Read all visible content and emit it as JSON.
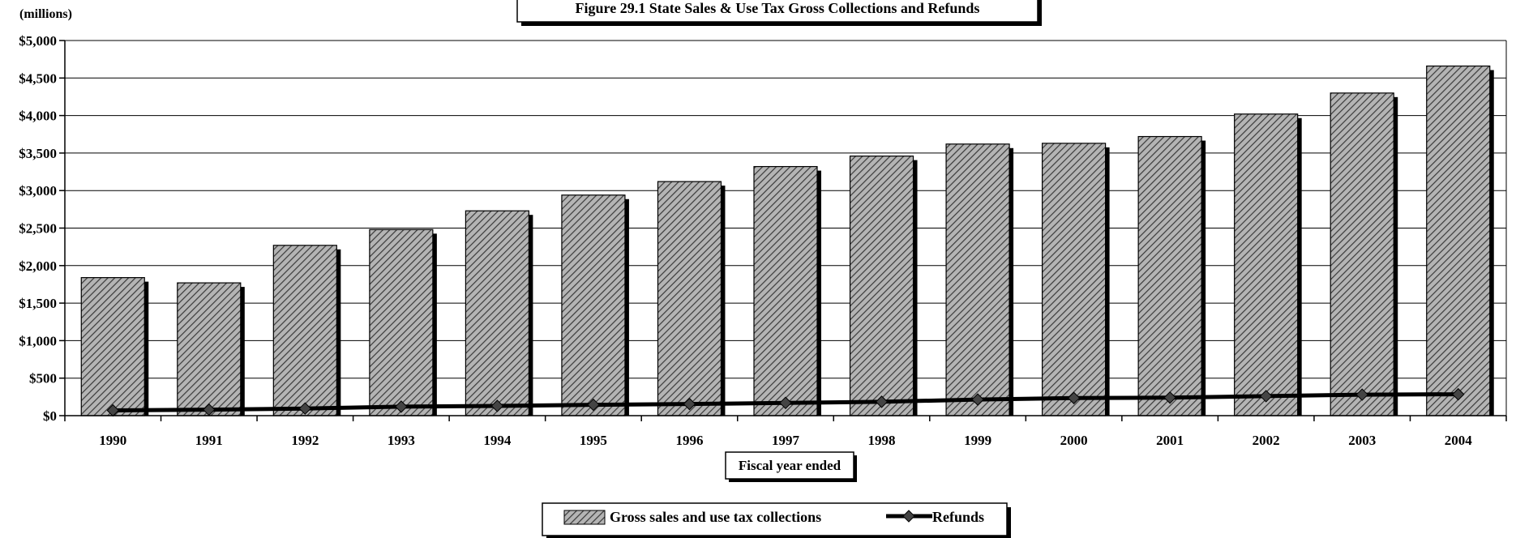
{
  "chart_data": {
    "type": "bar",
    "title": "Figure 29.1  State Sales & Use Tax Gross Collections and Refunds",
    "ylabel": "(millions)",
    "xlabel": "Fiscal year ended",
    "categories": [
      "1990",
      "1991",
      "1992",
      "1993",
      "1994",
      "1995",
      "1996",
      "1997",
      "1998",
      "1999",
      "2000",
      "2001",
      "2002",
      "2003",
      "2004"
    ],
    "ylim": [
      0,
      5000
    ],
    "yticks": [
      0,
      500,
      1000,
      1500,
      2000,
      2500,
      3000,
      3500,
      4000,
      4500,
      5000
    ],
    "ytick_labels": [
      "$0",
      "$500",
      "$1,000",
      "$1,500",
      "$2,000",
      "$2,500",
      "$3,000",
      "$3,500",
      "$4,000",
      "$4,500",
      "$5,000"
    ],
    "grid": true,
    "legend_position": "bottom-center",
    "series": [
      {
        "name": "Gross sales and use tax collections",
        "kind": "bar",
        "color": "#a8a8a8",
        "values": [
          1840,
          1770,
          2270,
          2480,
          2730,
          2940,
          3120,
          3320,
          3460,
          3620,
          3630,
          3720,
          4020,
          4300,
          4660
        ]
      },
      {
        "name": "Refunds",
        "kind": "line",
        "color": "#000000",
        "values": [
          70,
          80,
          95,
          120,
          130,
          145,
          155,
          170,
          185,
          215,
          235,
          240,
          260,
          280,
          285
        ]
      }
    ]
  }
}
